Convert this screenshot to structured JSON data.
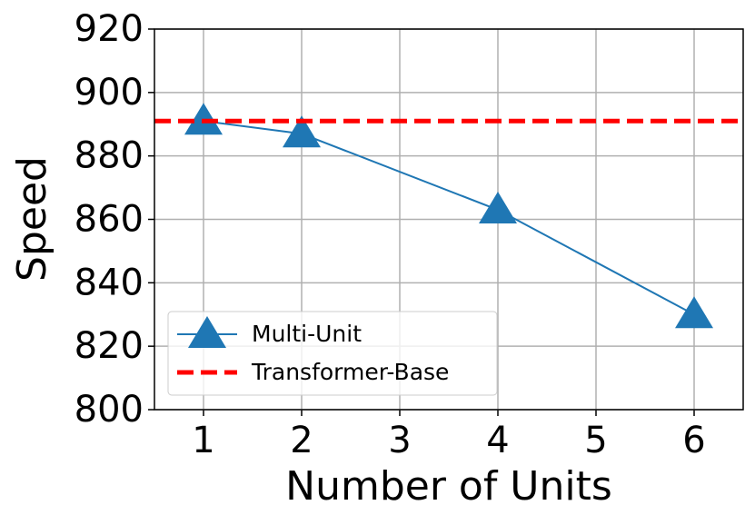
{
  "chart_data": {
    "type": "line",
    "xlabel": "Number of Units",
    "ylabel": "Speed",
    "series": [
      {
        "name": "Multi-Unit",
        "color": "#1f77b4",
        "marker": "triangle",
        "x": [
          1,
          2,
          4,
          6
        ],
        "values": [
          891,
          887,
          863,
          830
        ]
      }
    ],
    "hlines": [
      {
        "name": "Transformer-Base",
        "color": "#ff0000",
        "style": "dashed",
        "value": 891
      }
    ],
    "xlim": [
      0.5,
      6.5
    ],
    "xticks": [
      1,
      2,
      3,
      4,
      5,
      6
    ],
    "ylim": [
      800,
      920
    ],
    "yticks": [
      800,
      820,
      840,
      860,
      880,
      900,
      920
    ],
    "grid": true,
    "legend": "lower left"
  }
}
